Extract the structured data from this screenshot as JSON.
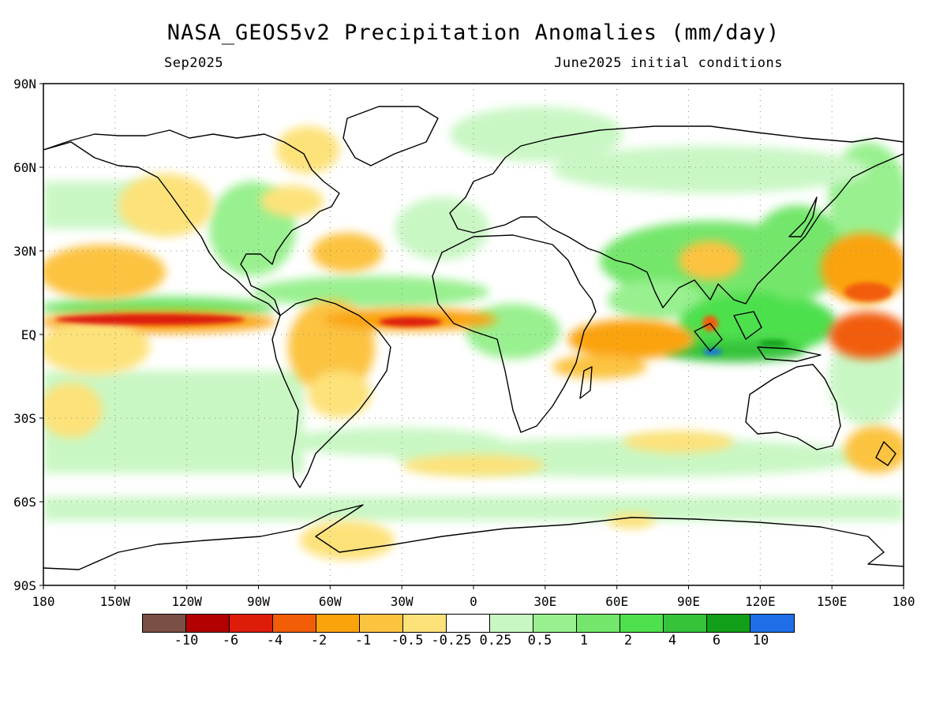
{
  "title": "NASA_GEOS5v2 Precipitation Anomalies (mm/day)",
  "subtitle_left": "Sep2025",
  "subtitle_right": "June2025 initial conditions",
  "latitude_labels": [
    "90N",
    "60N",
    "30N",
    "EQ",
    "30S",
    "60S",
    "90S"
  ],
  "longitude_labels": [
    "180",
    "150W",
    "120W",
    "90W",
    "60W",
    "30W",
    "0",
    "30E",
    "60E",
    "90E",
    "120E",
    "150E",
    "180"
  ],
  "colorbar": {
    "colors": [
      "#7a4f44",
      "#b30000",
      "#dd1c0a",
      "#f25d08",
      "#fba30a",
      "#fcc340",
      "#fde27a",
      "#ffffff",
      "#c9f7c4",
      "#99f08f",
      "#74e66c",
      "#4ee04d",
      "#36c33a",
      "#12a01a",
      "#1e6fe8"
    ],
    "labels": [
      "-10",
      "-6",
      "-4",
      "-2",
      "-1",
      "-0.5",
      "-0.25",
      "0.25",
      "0.5",
      "1",
      "2",
      "4",
      "6",
      "10"
    ]
  },
  "chart_data": {
    "type": "heatmap",
    "title": "NASA_GEOS5v2 Precipitation Anomalies (mm/day)",
    "xlabel": "",
    "ylabel": "",
    "xlim": [
      -180,
      180
    ],
    "ylim": [
      -90,
      90
    ],
    "grid": true,
    "units": "mm/day",
    "contour_levels": [
      -10,
      -6,
      -4,
      -2,
      -1,
      -0.5,
      -0.25,
      0.25,
      0.5,
      1,
      2,
      4,
      6,
      10
    ]
  }
}
